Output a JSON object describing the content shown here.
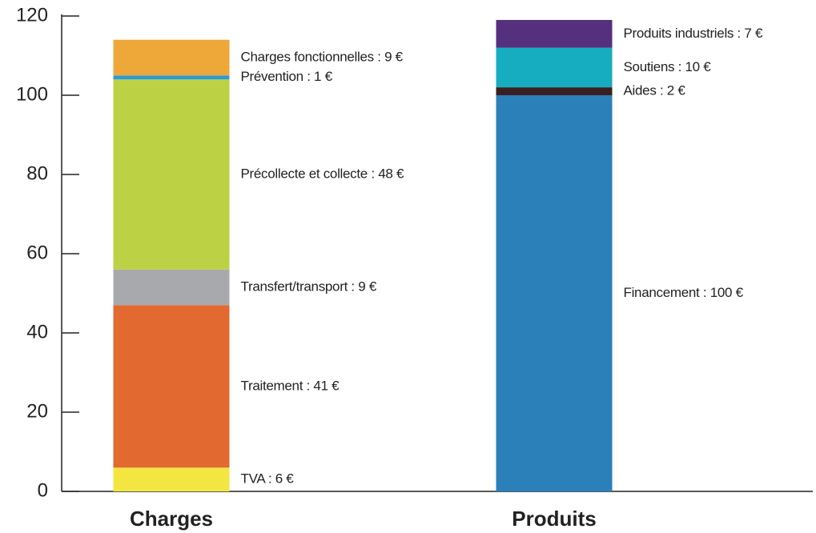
{
  "chart_data": {
    "type": "stacked_bar",
    "categories": [
      "Charges",
      "Produits"
    ],
    "ylim": [
      0,
      120
    ],
    "yticks": [
      0,
      20,
      40,
      60,
      80,
      100,
      120
    ],
    "series": [
      {
        "color": "#f4e641",
        "values": [
          6,
          null
        ],
        "value_labels": [
          "TVA : 6 €",
          null
        ]
      },
      {
        "color": "#e2692f",
        "values": [
          41,
          null
        ],
        "value_labels": [
          "Traitement : 41 €",
          null
        ]
      },
      {
        "color": "#a7a9ac",
        "values": [
          9,
          null
        ],
        "value_labels": [
          "Transfert/transport : 9 €",
          null
        ]
      },
      {
        "color": "#bcd143",
        "values": [
          48,
          null
        ],
        "value_labels": [
          "Précollecte et collecte : 48 €",
          null
        ]
      },
      {
        "color": "#2f9ad4",
        "values": [
          1,
          null
        ],
        "value_labels": [
          "Prévention : 1 €",
          null
        ]
      },
      {
        "color": "#eea83a",
        "values": [
          9,
          null
        ],
        "value_labels": [
          "Charges fonctionnelles : 9 €",
          null
        ]
      },
      {
        "color": "#2b80b9",
        "values": [
          null,
          100
        ],
        "value_labels": [
          null,
          "Financement : 100 €"
        ]
      },
      {
        "color": "#3a1f22",
        "values": [
          null,
          2
        ],
        "value_labels": [
          null,
          "Aides : 2 €"
        ]
      },
      {
        "color": "#16adc0",
        "values": [
          null,
          10
        ],
        "value_labels": [
          null,
          "Soutiens : 10 €"
        ]
      },
      {
        "color": "#55307e",
        "values": [
          null,
          7
        ],
        "value_labels": [
          null,
          "Produits industriels : 7  €"
        ]
      }
    ]
  }
}
